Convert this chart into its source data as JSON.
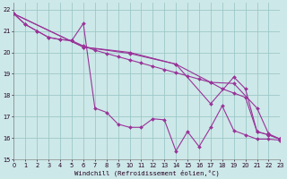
{
  "xlabel": "Windchill (Refroidissement éolien,°C)",
  "bg_color": "#cde8e8",
  "grid_color": "#9dc8c8",
  "line_color": "#993399",
  "xlim": [
    0,
    23
  ],
  "ylim": [
    15,
    22.3
  ],
  "yticks": [
    15,
    16,
    17,
    18,
    19,
    20,
    21,
    22
  ],
  "xticks": [
    0,
    1,
    2,
    3,
    4,
    5,
    6,
    7,
    8,
    9,
    10,
    11,
    12,
    13,
    14,
    15,
    16,
    17,
    18,
    19,
    20,
    21,
    22,
    23
  ],
  "series": [
    {
      "x": [
        0,
        1,
        2,
        3,
        4,
        5,
        6,
        7,
        8,
        9,
        10,
        11,
        12,
        13,
        14,
        15,
        16,
        17,
        18,
        19,
        20,
        21,
        22,
        23
      ],
      "y": [
        21.8,
        21.3,
        21.0,
        20.7,
        20.6,
        20.55,
        20.3,
        20.1,
        19.95,
        19.8,
        19.65,
        19.5,
        19.35,
        19.2,
        19.05,
        18.9,
        18.75,
        18.6,
        18.3,
        18.1,
        17.9,
        16.3,
        16.15,
        15.95
      ]
    },
    {
      "x": [
        0,
        6,
        10,
        14,
        17,
        19,
        21,
        22,
        23
      ],
      "y": [
        21.8,
        20.25,
        19.95,
        19.45,
        18.6,
        18.55,
        17.4,
        16.2,
        15.95
      ]
    },
    {
      "x": [
        0,
        6,
        10,
        14,
        17,
        19,
        20,
        21,
        22,
        23
      ],
      "y": [
        21.8,
        20.25,
        20.0,
        19.45,
        17.6,
        18.85,
        18.3,
        16.3,
        16.15,
        15.95
      ]
    },
    {
      "x": [
        0,
        1,
        2,
        3,
        4,
        5,
        6,
        7,
        8,
        9,
        10,
        11,
        12,
        13,
        14,
        15,
        16,
        17,
        18,
        19,
        20,
        21,
        22,
        23
      ],
      "y": [
        21.8,
        21.3,
        21.0,
        20.7,
        20.6,
        20.55,
        21.35,
        17.4,
        17.2,
        16.65,
        16.5,
        16.5,
        16.9,
        16.85,
        15.4,
        16.3,
        15.6,
        16.5,
        17.5,
        16.35,
        16.15,
        15.95,
        15.95,
        15.9
      ]
    }
  ]
}
